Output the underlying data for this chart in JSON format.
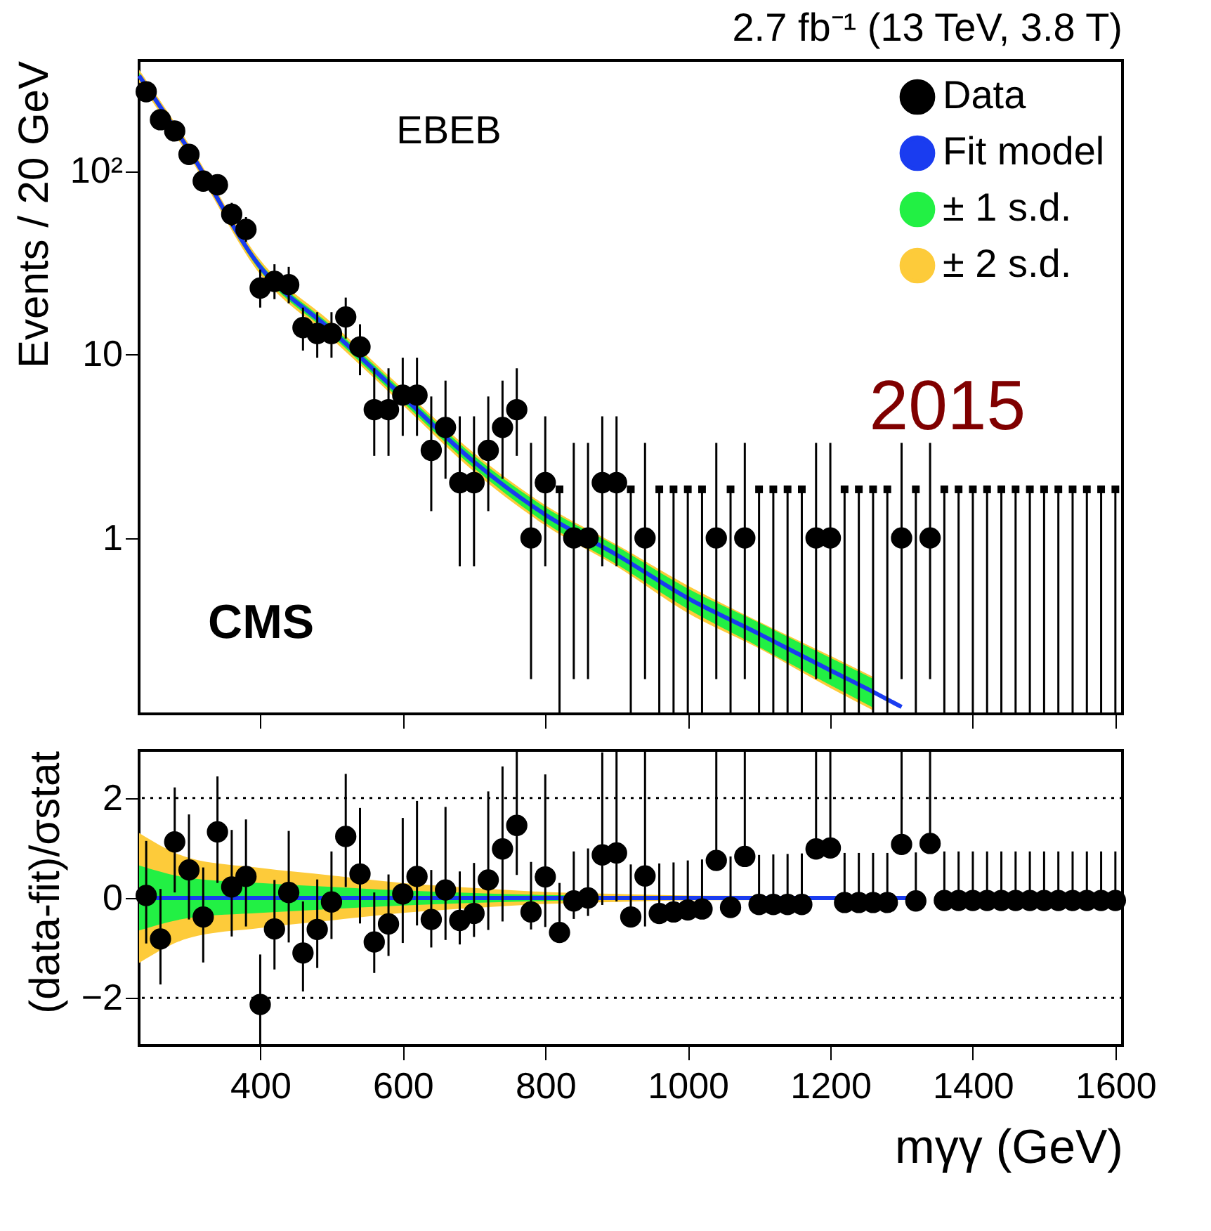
{
  "chart_data": [
    {
      "type": "scatter",
      "title": "2.7 fb⁻¹ (13 TeV, 3.8 T)",
      "ylabel": "Events / 20 GeV",
      "log": true,
      "legend": "top right",
      "marker": "circle",
      "tick_labels": "y",
      "xlim": [
        230,
        1610
      ],
      "ylim": [
        0.11,
        400
      ],
      "xticks": [
        400,
        600,
        800,
        1000,
        1200,
        1400,
        1600
      ],
      "yticks": [
        1,
        10,
        {
          "value": 100,
          "label": "10²"
        }
      ],
      "annotations": [
        "EBEB",
        "CMS",
        "2015"
      ],
      "x": [
        240,
        260,
        280,
        300,
        320,
        340,
        360,
        380,
        400,
        420,
        440,
        460,
        480,
        500,
        520,
        540,
        560,
        580,
        600,
        620,
        640,
        660,
        680,
        700,
        720,
        740,
        760,
        780,
        800,
        840,
        860,
        880,
        900,
        940,
        1040,
        1080,
        1180,
        1200,
        1300,
        1340
      ],
      "series": [
        {
          "name": "Data",
          "color": "#000000",
          "values": [
            270,
            190,
            165,
            123,
            88,
            84,
            58,
            48,
            23,
            25,
            24,
            14,
            13,
            13,
            16,
            11,
            5,
            5,
            6,
            6,
            3,
            4,
            2,
            2,
            3,
            4,
            5,
            1,
            2,
            1,
            1,
            2,
            2,
            1,
            1,
            1,
            1,
            1,
            1,
            1
          ],
          "errors": [
            null,
            null,
            null,
            null,
            null,
            null,
            [
              50,
              67
            ],
            [
              41,
              56
            ],
            [
              18,
              29
            ],
            [
              20,
              31
            ],
            [
              19,
              30
            ],
            [
              10.5,
              18
            ],
            [
              9.6,
              17
            ],
            [
              9.6,
              17
            ],
            [
              12.2,
              20.4
            ],
            [
              7.7,
              14.6
            ],
            [
              2.8,
              8.4
            ],
            [
              2.8,
              8.4
            ],
            [
              3.6,
              9.6
            ],
            [
              3.6,
              9.6
            ],
            [
              1.4,
              5.9
            ],
            [
              2.1,
              7.2
            ],
            [
              0.7,
              4.6
            ],
            [
              0.7,
              4.6
            ],
            [
              1.4,
              5.9
            ],
            [
              2.1,
              7.2
            ],
            [
              2.8,
              8.4
            ],
            [
              0.17,
              3.3
            ],
            [
              0.7,
              4.6
            ],
            [
              0.17,
              3.3
            ],
            [
              0.17,
              3.3
            ],
            [
              0.7,
              4.6
            ],
            [
              0.7,
              4.6
            ],
            [
              0.17,
              3.3
            ],
            [
              0.17,
              3.3
            ],
            [
              0.17,
              3.3
            ],
            [
              0.17,
              3.3
            ],
            [
              0.17,
              3.3
            ],
            [
              0.17,
              3.3
            ],
            [
              0.17,
              3.3
            ]
          ]
        },
        {
          "type": "scatter",
          "marker": "square",
          "color": "#000000",
          "x": [
            820,
            920,
            960,
            980,
            1000,
            1020,
            1060,
            1100,
            1120,
            1140,
            1160,
            1220,
            1240,
            1260,
            1280,
            1320,
            1360,
            1380,
            1400,
            1420,
            1440,
            1460,
            1480,
            1500,
            1520,
            1540,
            1560,
            1580,
            1600
          ],
          "values": [
            1.84,
            1.84,
            1.84,
            1.84,
            1.84,
            1.84,
            1.84,
            1.84,
            1.84,
            1.84,
            1.84,
            1.84,
            1.84,
            1.84,
            1.84,
            1.84,
            1.84,
            1.84,
            1.84,
            1.84,
            1.84,
            1.84,
            1.84,
            1.84,
            1.84,
            1.84,
            1.84,
            1.84,
            1.84
          ],
          "errors": [
            [
              0.11,
              1.84
            ],
            [
              0.11,
              1.84
            ],
            [
              0.11,
              1.84
            ],
            [
              0.11,
              1.84
            ],
            [
              0.11,
              1.84
            ],
            [
              0.11,
              1.84
            ],
            [
              0.11,
              1.84
            ],
            [
              0.11,
              1.84
            ],
            [
              0.11,
              1.84
            ],
            [
              0.11,
              1.84
            ],
            [
              0.11,
              1.84
            ],
            [
              0.11,
              1.84
            ],
            [
              0.11,
              1.84
            ],
            [
              0.11,
              1.84
            ],
            [
              0.11,
              1.84
            ],
            [
              0.11,
              1.84
            ],
            [
              0.11,
              1.84
            ],
            [
              0.11,
              1.84
            ],
            [
              0.11,
              1.84
            ],
            [
              0.11,
              1.84
            ],
            [
              0.11,
              1.84
            ],
            [
              0.11,
              1.84
            ],
            [
              0.11,
              1.84
            ],
            [
              0.11,
              1.84
            ],
            [
              0.11,
              1.84
            ],
            [
              0.11,
              1.84
            ],
            [
              0.11,
              1.84
            ],
            [
              0.11,
              1.84
            ],
            [
              0.11,
              1.84
            ]
          ]
        },
        {
          "name": "Fit model",
          "type": "line",
          "marker": "none",
          "color": "#1a3cf0",
          "x": [
            230,
            300,
            400,
            500,
            600,
            700,
            800,
            900,
            1000,
            1100,
            1200,
            1260,
            1300
          ],
          "values": [
            330,
            130,
            30,
            13.5,
            5.9,
            2.6,
            1.34,
            0.81,
            0.47,
            0.3,
            0.19,
            0.145,
            0.12
          ]
        },
        {
          "name": "± 1 s.d.",
          "type": "line",
          "marker": "none",
          "color": "#22f044",
          "x": [
            230,
            300,
            400,
            500,
            600,
            700,
            800,
            900,
            1000,
            1100,
            1200,
            1260
          ],
          "values": [
            null,
            null,
            null,
            null,
            null,
            null,
            null,
            null,
            null,
            null,
            null,
            null
          ],
          "lower": [
            317,
            125,
            28.5,
            12.7,
            5.5,
            2.4,
            1.21,
            0.72,
            0.41,
            0.255,
            0.158,
            0.119
          ],
          "upper": [
            343,
            135,
            31.5,
            14.3,
            6.3,
            2.8,
            1.47,
            0.9,
            0.53,
            0.345,
            0.222,
            0.171
          ]
        },
        {
          "name": "± 2 s.d.",
          "type": "line",
          "marker": "none",
          "color": "#fdcb3a",
          "x": [
            230,
            300,
            400,
            500,
            600,
            700,
            800,
            900,
            1000,
            1100,
            1200,
            1260
          ],
          "values": [
            null,
            null,
            null,
            null,
            null,
            null,
            null,
            null,
            null,
            null,
            null,
            null
          ],
          "lower": [
            304,
            120,
            27.3,
            12.2,
            5.3,
            2.3,
            1.17,
            0.7,
            0.39,
            0.25,
            0.152,
            0.115
          ],
          "upper": [
            356,
            140,
            32.7,
            14.9,
            6.5,
            2.9,
            1.51,
            0.92,
            0.55,
            0.35,
            0.228,
            0.175
          ]
        }
      ]
    },
    {
      "type": "scatter",
      "xlabel": "mγγ (GeV)",
      "ylabel": "(data-fit)/σstat",
      "marker": "circle",
      "xlim": [
        230,
        1610
      ],
      "ylim": [
        -2.95,
        2.95
      ],
      "xticks": [
        400,
        600,
        800,
        1000,
        1200,
        1400,
        1600
      ],
      "yticks": [
        -2,
        0,
        2
      ],
      "ref_lines": [
        {
          "axis": "y",
          "value": 2,
          "color": "#000000",
          "line_style": "dotted"
        },
        {
          "axis": "y",
          "value": -2,
          "color": "#000000",
          "line_style": "dotted"
        }
      ],
      "x": [
        240,
        260,
        280,
        300,
        320,
        340,
        360,
        380,
        400,
        420,
        440,
        460,
        480,
        500,
        520,
        540,
        560,
        580,
        600,
        620,
        640,
        660,
        680,
        700,
        720,
        740,
        760,
        780,
        800,
        820,
        840,
        860,
        880,
        900,
        920,
        940,
        960,
        980,
        1000,
        1020,
        1040,
        1060,
        1080,
        1100,
        1120,
        1140,
        1160,
        1180,
        1200,
        1220,
        1240,
        1260,
        1280,
        1300,
        1320,
        1340,
        1360,
        1380,
        1400,
        1420,
        1440,
        1460,
        1480,
        1500,
        1520,
        1540,
        1560,
        1580,
        1600
      ],
      "series": [
        {
          "color": "#000000",
          "values": [
            0.05,
            -0.82,
            1.12,
            0.56,
            -0.38,
            1.32,
            0.22,
            0.43,
            -2.13,
            -0.62,
            0.11,
            -1.1,
            -0.63,
            -0.08,
            1.23,
            0.48,
            -0.88,
            -0.52,
            0.08,
            0.43,
            -0.43,
            0.16,
            -0.45,
            -0.31,
            0.36,
            0.98,
            1.45,
            -0.28,
            0.42,
            -0.69,
            -0.06,
            0.0,
            0.86,
            0.9,
            -0.38,
            0.44,
            -0.31,
            -0.28,
            -0.24,
            -0.22,
            0.75,
            -0.19,
            0.83,
            -0.13,
            -0.13,
            -0.13,
            -0.13,
            0.98,
            1.0,
            -0.09,
            -0.09,
            -0.09,
            -0.09,
            1.07,
            -0.06,
            1.09,
            -0.05,
            -0.05,
            -0.05,
            -0.05,
            -0.05,
            -0.05,
            -0.05,
            -0.05,
            -0.05,
            -0.05,
            -0.05,
            -0.05,
            -0.05
          ],
          "errors": [
            [
              -0.91,
              1.14
            ],
            [
              -1.73,
              0.18
            ],
            [
              0.11,
              2.21
            ],
            [
              -0.43,
              1.67
            ],
            [
              -1.29,
              0.61
            ],
            [
              0.3,
              2.43
            ],
            [
              -0.77,
              1.36
            ],
            [
              -0.57,
              1.57
            ],
            [
              -2.94,
              -1.13
            ],
            [
              -1.43,
              0.36
            ],
            [
              -0.89,
              1.34
            ],
            [
              -1.87,
              -0.07
            ],
            [
              -1.4,
              0.37
            ],
            [
              -0.82,
              0.93
            ],
            [
              0.22,
              2.48
            ],
            [
              -0.51,
              1.8
            ],
            [
              -1.5,
              0.11
            ],
            [
              -1.16,
              0.47
            ],
            [
              -0.9,
              1.6
            ],
            [
              -0.55,
              1.94
            ],
            [
              -0.99,
              0.56
            ],
            [
              -0.84,
              1.82
            ],
            [
              -0.93,
              0.53
            ],
            [
              -0.78,
              0.7
            ],
            [
              -0.64,
              2.13
            ],
            [
              -0.47,
              2.63
            ],
            [
              0.46,
              2.95
            ],
            [
              -0.63,
              0.72
            ],
            [
              -0.58,
              2.47
            ],
            [
              -0.86,
              0.3
            ],
            [
              -0.42,
              0.93
            ],
            [
              -0.36,
              0.99
            ],
            [
              -0.14,
              2.91
            ],
            [
              -0.07,
              2.95
            ],
            [
              -0.57,
              0.67
            ],
            [
              -0.57,
              2.95
            ],
            [
              -0.31,
              0.69
            ],
            [
              -0.28,
              0.71
            ],
            [
              -0.24,
              0.75
            ],
            [
              -0.22,
              0.77
            ],
            [
              0.6,
              2.95
            ],
            [
              -0.19,
              0.83
            ],
            [
              0.65,
              2.95
            ],
            [
              -0.13,
              0.86
            ],
            [
              -0.13,
              0.87
            ],
            [
              -0.13,
              0.88
            ],
            [
              -0.13,
              0.89
            ],
            [
              0.85,
              2.95
            ],
            [
              0.87,
              2.95
            ],
            [
              -0.09,
              0.9
            ],
            [
              -0.09,
              0.9
            ],
            [
              -0.09,
              0.9
            ],
            [
              -0.09,
              0.9
            ],
            [
              0.95,
              2.95
            ],
            [
              -0.06,
              0.91
            ],
            [
              0.98,
              2.95
            ],
            [
              -0.05,
              0.93
            ],
            [
              -0.05,
              0.93
            ],
            [
              -0.05,
              0.93
            ],
            [
              -0.05,
              0.93
            ],
            [
              -0.05,
              0.93
            ],
            [
              -0.05,
              0.93
            ],
            [
              -0.05,
              0.93
            ],
            [
              -0.05,
              0.93
            ],
            [
              -0.05,
              0.93
            ],
            [
              -0.05,
              0.93
            ],
            [
              -0.05,
              0.93
            ],
            [
              -0.05,
              0.93
            ],
            [
              -0.05,
              0.93
            ]
          ]
        },
        {
          "type": "line",
          "marker": "none",
          "color": "#1a3cf0",
          "x": [
            230,
            1330
          ],
          "values": [
            0,
            0
          ]
        },
        {
          "type": "line",
          "marker": "none",
          "color": "#22f044",
          "x": [
            230,
            300,
            400,
            500,
            600,
            700,
            800,
            900,
            1000,
            1200
          ],
          "values": [
            null,
            null,
            null,
            null,
            null,
            null,
            null,
            null,
            null,
            null
          ],
          "lower": [
            -0.65,
            -0.4,
            -0.3,
            -0.22,
            -0.15,
            -0.1,
            -0.06,
            -0.04,
            -0.03,
            -0.02
          ],
          "upper": [
            0.65,
            0.4,
            0.3,
            0.22,
            0.15,
            0.1,
            0.06,
            0.04,
            0.03,
            0.02
          ]
        },
        {
          "type": "line",
          "marker": "none",
          "color": "#fdcb3a",
          "x": [
            230,
            300,
            400,
            500,
            600,
            700,
            800,
            900,
            1000,
            1200
          ],
          "values": [
            null,
            null,
            null,
            null,
            null,
            null,
            null,
            null,
            null,
            null
          ],
          "lower": [
            -1.3,
            -0.8,
            -0.6,
            -0.45,
            -0.3,
            -0.2,
            -0.12,
            -0.08,
            -0.05,
            -0.04
          ],
          "upper": [
            1.3,
            0.8,
            0.6,
            0.45,
            0.3,
            0.2,
            0.12,
            0.08,
            0.05,
            0.04
          ]
        }
      ]
    }
  ]
}
